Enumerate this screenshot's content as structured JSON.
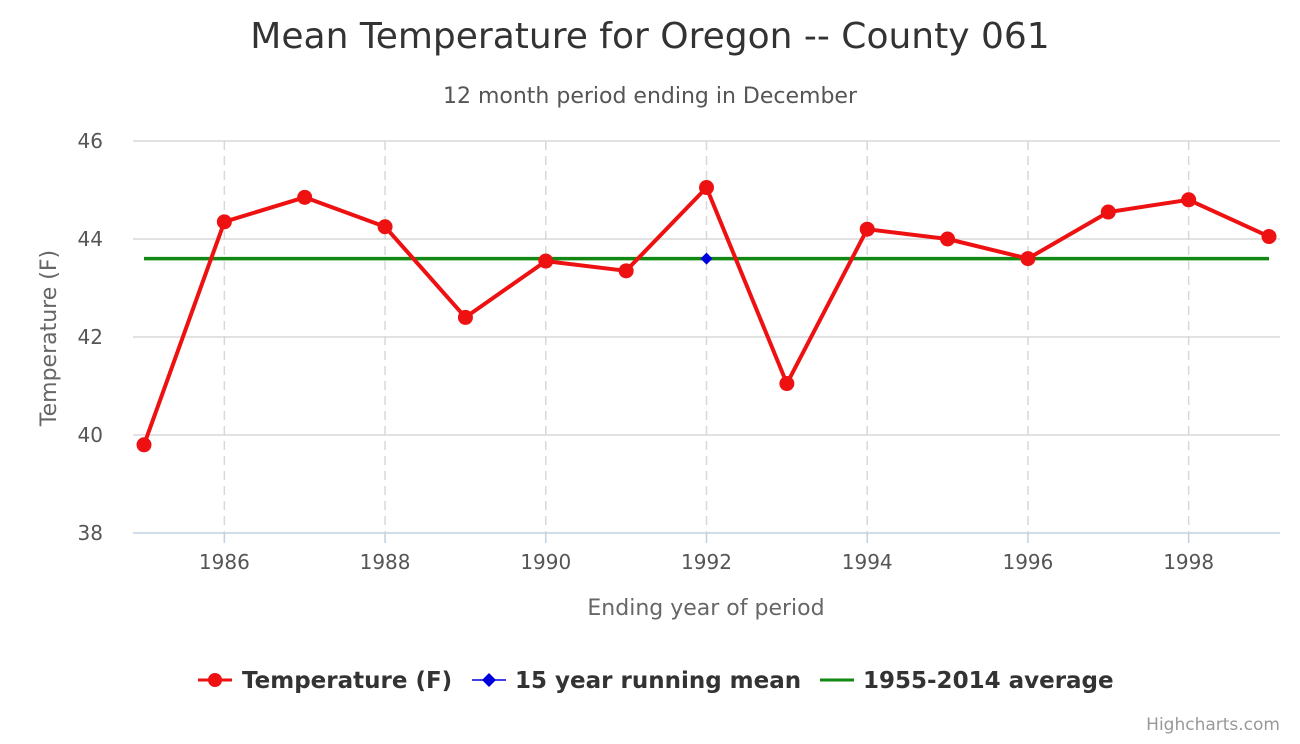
{
  "chart_data": {
    "type": "line",
    "title": "Mean Temperature for Oregon -- County 061",
    "subtitle": "12 month period ending in December",
    "xlabel": "Ending year of period",
    "ylabel": "Temperature (F)",
    "xlim": [
      1985,
      1999
    ],
    "ylim": [
      38,
      46
    ],
    "x_ticks": [
      1986,
      1988,
      1990,
      1992,
      1994,
      1996,
      1998
    ],
    "y_ticks": [
      38,
      40,
      42,
      44,
      46
    ],
    "grid": "x dashed, y solid",
    "legend_position": "bottom",
    "credits": "Highcharts.com",
    "series": [
      {
        "name": "Temperature (F)",
        "color": "#ee1111",
        "marker": "circle",
        "x": [
          1985,
          1986,
          1987,
          1988,
          1989,
          1990,
          1991,
          1992,
          1993,
          1994,
          1995,
          1996,
          1997,
          1998,
          1999
        ],
        "values": [
          39.8,
          44.35,
          44.85,
          44.25,
          42.4,
          43.55,
          43.35,
          45.05,
          41.05,
          44.2,
          44.0,
          43.6,
          44.55,
          44.8,
          44.05
        ]
      },
      {
        "name": "15 year running mean",
        "color": "#0000dd",
        "marker": "diamond",
        "x": [
          1992
        ],
        "values": [
          43.6
        ]
      },
      {
        "name": "1955-2014 average",
        "color": "#118811",
        "marker": "none",
        "x": [
          1985,
          1999
        ],
        "values": [
          43.6,
          43.6
        ]
      }
    ]
  }
}
